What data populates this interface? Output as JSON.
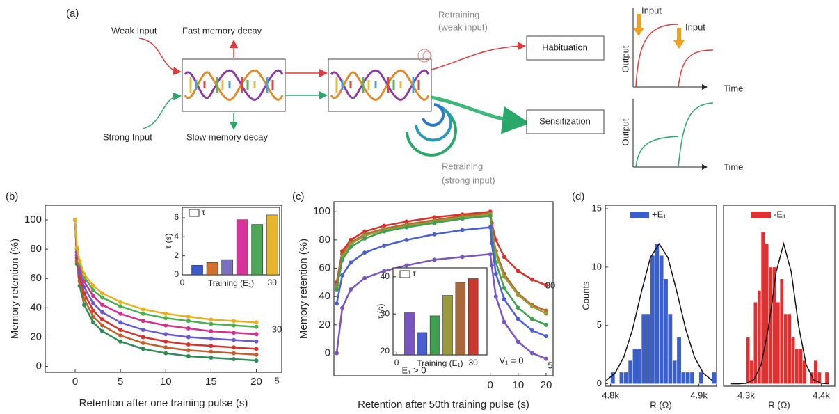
{
  "diagram": {
    "label": "(a)",
    "weak_input": "Weak Input",
    "fast_decay": "Fast memory decay",
    "strong_input": "Strong Input",
    "slow_decay": "Slow memory decay",
    "retraining_weak": [
      "Retraining",
      "(weak input)"
    ],
    "retraining_strong": [
      "Retraining",
      "(strong input)"
    ],
    "habituation": "Habituation",
    "sensitization": "Sensitization",
    "graph_top": {
      "inputs": [
        "Input",
        "Input"
      ],
      "ylabel": "Output",
      "xlabel": "Time"
    },
    "graph_bottom": {
      "ylabel": "Output",
      "xlabel": "Time"
    }
  },
  "chart_data": [
    {
      "type": "line",
      "panel": "(b)",
      "xlabel": "Retention after one training pulse (s)",
      "ylabel": "Memory retention (%)",
      "xlim": [
        -3.3,
        22.8
      ],
      "ylim": [
        -4,
        110
      ],
      "xticks": [
        0,
        5,
        10,
        15,
        20
      ],
      "yticks": [
        0,
        20,
        40,
        60,
        80,
        100
      ],
      "x": [
        0,
        0.2,
        0.5,
        1,
        2,
        3,
        5,
        7.5,
        10,
        12.5,
        15,
        17.5,
        20
      ],
      "series": [
        {
          "color": "#2e8b57",
          "values": [
            100,
            70,
            55,
            42,
            30,
            24,
            17,
            12,
            9,
            7,
            6,
            5,
            4
          ]
        },
        {
          "color": "#c0602a",
          "values": [
            100,
            72,
            58,
            46,
            34,
            28,
            21,
            16,
            13,
            11,
            10,
            9,
            8
          ]
        },
        {
          "color": "#d9302c",
          "values": [
            100,
            74,
            61,
            50,
            38,
            32,
            25,
            20,
            17,
            15,
            14,
            13,
            12
          ]
        },
        {
          "color": "#6a5acd",
          "values": [
            100,
            76,
            64,
            54,
            43,
            37,
            30,
            25,
            22,
            20,
            19,
            18,
            17
          ]
        },
        {
          "color": "#d62f8f",
          "values": [
            100,
            78,
            67,
            58,
            48,
            42,
            36,
            31,
            28,
            26,
            24,
            23,
            22
          ]
        },
        {
          "color": "#4caf50",
          "values": [
            100,
            80,
            70,
            61,
            52,
            47,
            41,
            36,
            33,
            31,
            29,
            28,
            27
          ]
        },
        {
          "color": "#e8b020",
          "values": [
            100,
            81,
            72,
            63,
            55,
            50,
            44,
            39,
            36,
            34,
            32,
            31,
            30
          ]
        }
      ],
      "annotations": [
        "30",
        "5"
      ]
    },
    {
      "type": "bar",
      "xlabel": "Training (E₁)",
      "ylabel": "τ (s)",
      "legend_label": "τ",
      "xlim": [
        0,
        32.5
      ],
      "ylim": [
        0,
        7.1
      ],
      "xticks": [
        0,
        30
      ],
      "yticks": [
        0,
        2,
        4,
        6
      ],
      "x": [
        5,
        10,
        15,
        20,
        25,
        30
      ],
      "values": [
        1.0,
        1.3,
        1.6,
        5.8,
        5.3,
        6.3
      ],
      "colors": [
        "#3b5bcc",
        "#d0702c",
        "#7a6fc0",
        "#d8339a",
        "#4fa85a",
        "#e6b530"
      ]
    },
    {
      "type": "line",
      "panel": "(c)",
      "xlabel": "Retention after 50th training pulse (s)",
      "ylabel": "Memory retention (%)",
      "xlim": [
        -56,
        22.5
      ],
      "ylim": [
        -16,
        107
      ],
      "xticks": [
        0,
        10,
        20
      ],
      "yticks": [
        0,
        20,
        40,
        60,
        80,
        100
      ],
      "x": [
        -55,
        -53,
        -50,
        -45,
        -38,
        -30,
        -20,
        -10,
        0,
        0.5,
        2,
        5,
        10,
        15,
        20
      ],
      "series": [
        {
          "color": "#d8302c",
          "values": [
            50,
            72,
            80,
            86,
            90,
            93,
            96,
            98,
            100,
            92,
            80,
            68,
            58,
            52,
            48
          ]
        },
        {
          "color": "#b8652a",
          "values": [
            48,
            70,
            78,
            84,
            88,
            91,
            94,
            97,
            99,
            88,
            72,
            56,
            42,
            34,
            30
          ]
        },
        {
          "color": "#9a9a3a",
          "values": [
            46,
            68,
            77,
            83,
            87,
            90,
            93,
            96,
            98,
            86,
            70,
            54,
            41,
            33,
            28
          ]
        },
        {
          "color": "#3f9f4f",
          "values": [
            45,
            66,
            75,
            81,
            86,
            89,
            92,
            95,
            97,
            84,
            64,
            46,
            32,
            24,
            20
          ]
        },
        {
          "color": "#4a5fd0",
          "values": [
            35,
            55,
            64,
            71,
            76,
            80,
            84,
            87,
            89,
            78,
            56,
            38,
            24,
            16,
            12
          ]
        },
        {
          "color": "#7a55c0",
          "values": [
            0,
            32,
            45,
            53,
            58,
            62,
            66,
            68,
            70,
            62,
            40,
            22,
            8,
            0,
            -4
          ]
        }
      ],
      "annotations": [
        "30",
        "5",
        "E₁ > 0",
        "V₁ = 0"
      ]
    },
    {
      "type": "bar",
      "xlabel": "Training (E₁)",
      "ylabel": "τ (s)",
      "legend_label": "τ",
      "xlim": [
        -1.4,
        35.4
      ],
      "ylim": [
        19,
        42.4
      ],
      "xticks": [
        0,
        30
      ],
      "yticks": [
        20,
        30,
        40
      ],
      "x": [
        5,
        10,
        15,
        20,
        25,
        30
      ],
      "values": [
        30.5,
        25,
        29.5,
        35,
        38.5,
        39.5
      ],
      "colors": [
        "#7a55c0",
        "#4a5fd0",
        "#3f9f4f",
        "#9a9a3a",
        "#a8683a",
        "#c83a30"
      ]
    },
    {
      "type": "histogram",
      "panel": "(d)",
      "xlabel": "R (Ω)",
      "ylabel": "Counts",
      "legend_label": "+E₁",
      "color": "#3a5fc8",
      "xlim": [
        4794,
        4920
      ],
      "ylim": [
        -0.2,
        15.3
      ],
      "yticks": [
        0,
        5,
        10,
        15
      ],
      "xticks": [
        {
          "value": 4800,
          "label": "4.8k"
        },
        {
          "value": 4900,
          "label": "4.9k"
        }
      ],
      "bins": [
        4800,
        4805,
        4810,
        4815,
        4820,
        4825,
        4830,
        4835,
        4840,
        4845,
        4850,
        4855,
        4860,
        4865,
        4870,
        4875,
        4880,
        4885,
        4890,
        4895,
        4900,
        4905,
        4910,
        4915,
        4920
      ],
      "counts": [
        1,
        0,
        1,
        1,
        2,
        3,
        3,
        6,
        6,
        11,
        12,
        11,
        9,
        6,
        2,
        4,
        1,
        1,
        1,
        0,
        1,
        0,
        0,
        1
      ],
      "fit": {
        "x": [
          4795,
          4805,
          4815,
          4825,
          4835,
          4845,
          4855,
          4865,
          4875,
          4885,
          4895,
          4905,
          4915
        ],
        "values": [
          0.29,
          0.91,
          2.3,
          4.7,
          7.9,
          10.8,
          12,
          10.8,
          7.9,
          4.7,
          2.3,
          0.91,
          0.29
        ]
      }
    },
    {
      "type": "histogram",
      "xlabel": "R (Ω)",
      "legend_label": "-E₁",
      "color": "#e03030",
      "xlim": [
        4270,
        4418
      ],
      "ylim": [
        -0.2,
        15.3
      ],
      "xticks": [
        {
          "value": 4300,
          "label": "4.3k"
        },
        {
          "value": 4400,
          "label": "4.4k"
        }
      ],
      "bins": [
        4290,
        4295,
        4300,
        4305,
        4310,
        4315,
        4320,
        4325,
        4330,
        4335,
        4340,
        4345,
        4350,
        4355,
        4360,
        4365,
        4370,
        4375,
        4380,
        4385,
        4390,
        4395,
        4400,
        4405,
        4410
      ],
      "counts": [
        0,
        0,
        4,
        2,
        7,
        8,
        13,
        12,
        10,
        10,
        7,
        9,
        6,
        6,
        4,
        3,
        3,
        2,
        0,
        1,
        2,
        1,
        0,
        1
      ],
      "fit": {
        "x": [
          4280,
          4290,
          4300,
          4310,
          4320,
          4330,
          4340,
          4350,
          4360,
          4370,
          4380,
          4390,
          4400,
          4410
        ],
        "values": [
          0,
          0.004,
          0.046,
          0.34,
          1.62,
          4.9,
          9.6,
          12,
          9.6,
          4.9,
          1.62,
          0.34,
          0.046,
          0.004
        ]
      }
    }
  ]
}
